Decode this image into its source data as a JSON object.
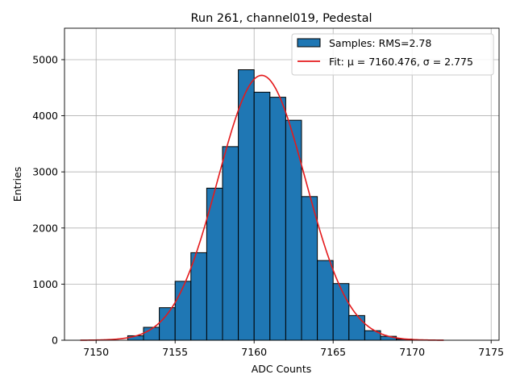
{
  "chart_data": {
    "type": "bar",
    "title": "Run 261, channel019, Pedestal",
    "xlabel": "ADC Counts",
    "ylabel": "Entries",
    "xlim": [
      7148.0,
      7175.5
    ],
    "ylim": [
      0,
      5560
    ],
    "x_ticks": [
      7150,
      7155,
      7160,
      7165,
      7170,
      7175
    ],
    "x_tick_labels": [
      "7150",
      "7155",
      "7160",
      "7165",
      "7170",
      "7175"
    ],
    "y_ticks": [
      0,
      1000,
      2000,
      3000,
      4000,
      5000
    ],
    "y_tick_labels": [
      "0",
      "1000",
      "2000",
      "3000",
      "4000",
      "5000"
    ],
    "grid": true,
    "legend_position": "top-right",
    "bin_width": 1,
    "bins": [
      {
        "x_left": 7152,
        "count": 80
      },
      {
        "x_left": 7153,
        "count": 230
      },
      {
        "x_left": 7154,
        "count": 580
      },
      {
        "x_left": 7155,
        "count": 1050
      },
      {
        "x_left": 7156,
        "count": 1560
      },
      {
        "x_left": 7157,
        "count": 2710
      },
      {
        "x_left": 7158,
        "count": 3450
      },
      {
        "x_left": 7159,
        "count": 4820
      },
      {
        "x_left": 7160,
        "count": 4420
      },
      {
        "x_left": 7161,
        "count": 4330
      },
      {
        "x_left": 7162,
        "count": 3920
      },
      {
        "x_left": 7163,
        "count": 2560
      },
      {
        "x_left": 7164,
        "count": 1420
      },
      {
        "x_left": 7165,
        "count": 1010
      },
      {
        "x_left": 7166,
        "count": 440
      },
      {
        "x_left": 7167,
        "count": 170
      },
      {
        "x_left": 7168,
        "count": 70
      },
      {
        "x_left": 7169,
        "count": 20
      }
    ],
    "fit": {
      "mu": 7160.476,
      "sigma": 2.775,
      "amplitude": 4720,
      "x_range": [
        7149,
        7172
      ]
    },
    "series": [
      {
        "name": "Samples: RMS=2.78",
        "kind": "histogram",
        "color": "#1f77b4"
      },
      {
        "name": "Fit: μ = 7160.476, σ = 2.775",
        "kind": "line",
        "color": "#e41a1c"
      }
    ]
  }
}
